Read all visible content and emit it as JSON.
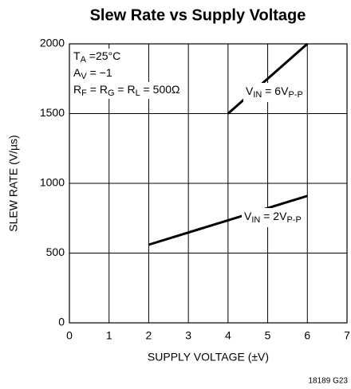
{
  "chart_data": {
    "type": "line",
    "title": "Slew Rate vs Supply Voltage",
    "x_label": "SUPPLY VOLTAGE (±V)",
    "y_label": "SLEW RATE (V/µs)",
    "xlim": [
      0,
      7
    ],
    "ylim": [
      0,
      2000
    ],
    "xticks": [
      0,
      1,
      2,
      3,
      4,
      5,
      6,
      7
    ],
    "yticks": [
      0,
      500,
      1000,
      1500,
      2000
    ],
    "grid": true,
    "series": [
      {
        "name": [
          "V",
          {
            "sub": "IN"
          },
          " = 6V",
          {
            "sub": "P-P"
          }
        ],
        "color": "#000000",
        "x": [
          4,
          6
        ],
        "values": [
          1500,
          2000
        ]
      },
      {
        "name": [
          "V",
          {
            "sub": "IN"
          },
          " = 2V",
          {
            "sub": "P-P"
          }
        ],
        "color": "#000000",
        "x": [
          2,
          6
        ],
        "values": [
          560,
          910
        ]
      }
    ],
    "annotations": [
      [
        "T",
        {
          "sub": "A"
        },
        " =25°C"
      ],
      [
        "A",
        {
          "sub": "V"
        },
        " = −1"
      ],
      [
        "R",
        {
          "sub": "F"
        },
        " = R",
        {
          "sub": "G"
        },
        " = R",
        {
          "sub": "L"
        },
        " = 500Ω"
      ]
    ],
    "footnote": "18189 G23"
  }
}
